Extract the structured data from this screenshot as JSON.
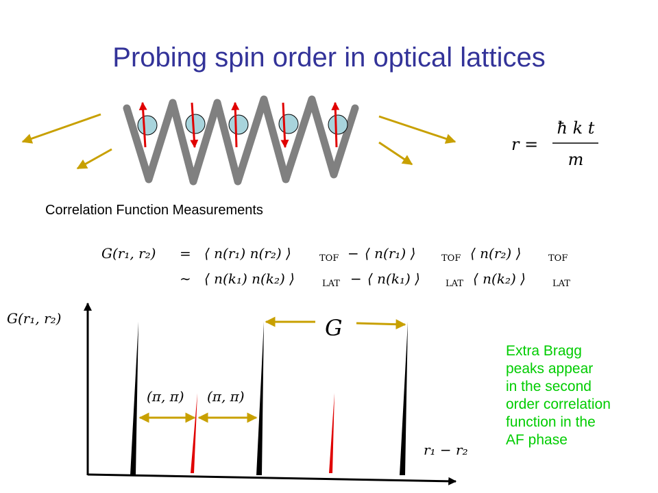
{
  "title": "Probing spin order in optical lattices",
  "subtitle": "Correlation Function Measurements",
  "note_lines": [
    "Extra Bragg",
    "peaks appear",
    "in the second",
    "order correlation",
    "function in the",
    "AF phase"
  ],
  "equations": {
    "radius": {
      "lhs": "r =",
      "numerator": "ħ k t",
      "denominator": "m"
    },
    "line1": {
      "lhs": "G(r₁, r₂)",
      "eq": "=",
      "t1": "⟨ n(r₁) n(r₂) ⟩",
      "s1": "TOF",
      "minus": "−",
      "t2": "⟨ n(r₁) ⟩",
      "s2": "TOF",
      "t3": "⟨ n(r₂) ⟩",
      "s3": "TOF"
    },
    "line2": {
      "sim": "∼",
      "t1": "⟨ n(k₁) n(k₂) ⟩",
      "s1": "LAT",
      "minus": "−",
      "t2": "⟨ n(k₁) ⟩",
      "s2": "LAT",
      "t3": "⟨ n(k₂) ⟩",
      "s3": "LAT"
    }
  },
  "plot": {
    "ylabel": "G(r₁, r₂)",
    "xlabel": "r₁ − r₂",
    "spacing_label": "G",
    "half_label_left": "(π, π)",
    "half_label_right": "(π, π)"
  },
  "colors": {
    "title": "#333399",
    "note": "#00cc00",
    "arrow": "#c8a000",
    "spin": "#e00000",
    "lattice": "#808080",
    "atom": "#a8d4dc"
  }
}
